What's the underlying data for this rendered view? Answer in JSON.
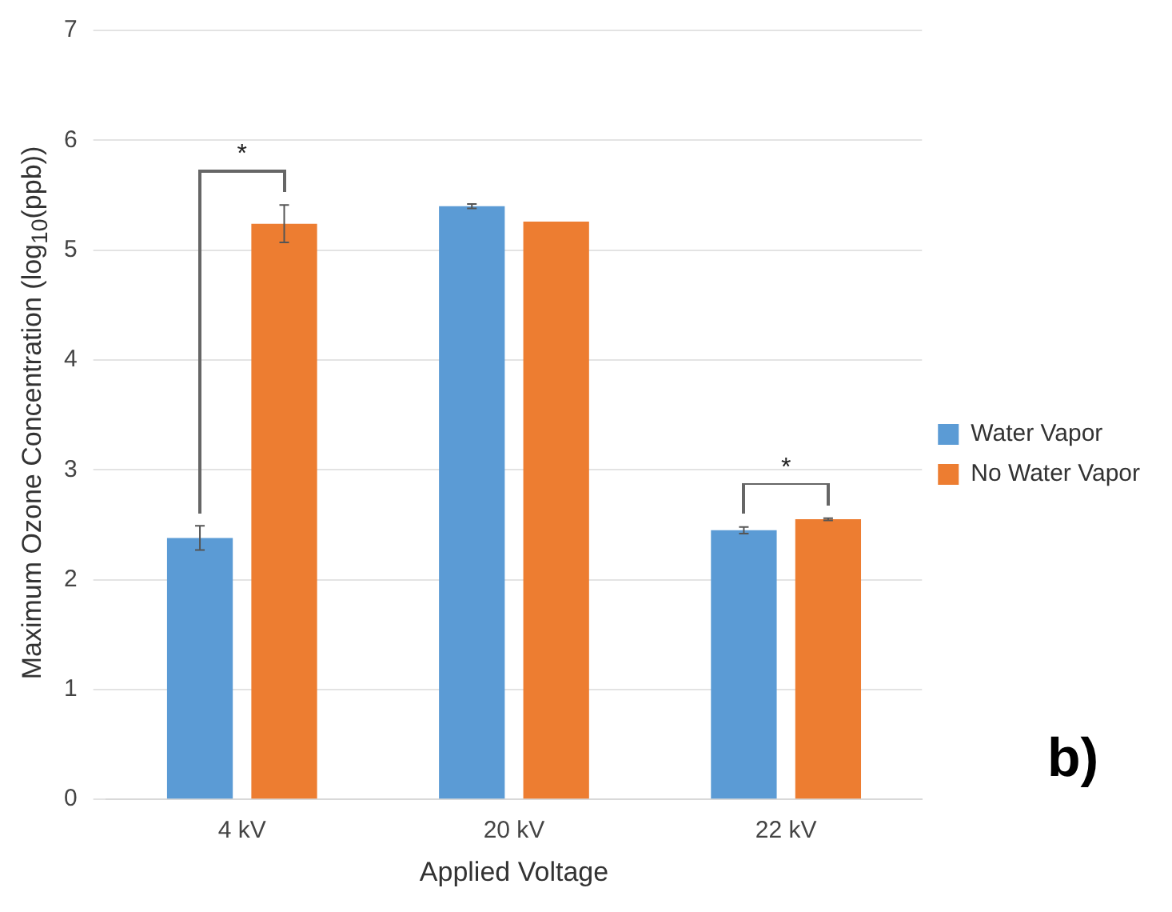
{
  "chart_data": {
    "type": "bar",
    "xlabel": "Applied Voltage",
    "ylabel": "Maximum Ozone Concentration (log$_{10}$(ppb))",
    "categories": [
      "4 kV",
      "20 kV",
      "22 kV"
    ],
    "series": [
      {
        "name": "Water Vapor",
        "color": "#5b9bd5",
        "values": [
          2.38,
          5.4,
          2.45
        ],
        "errors": [
          0.11,
          0.02,
          0.03
        ]
      },
      {
        "name": "No Water Vapor",
        "color": "#ed7d31",
        "values": [
          5.24,
          5.26,
          2.55
        ],
        "errors": [
          0.17,
          null,
          0.01
        ]
      }
    ],
    "ylim": [
      0,
      7
    ],
    "yticks": [
      0,
      1,
      2,
      3,
      4,
      5,
      6,
      7
    ],
    "grid": "y",
    "legend": "right",
    "annotations": [
      "*",
      "*",
      "b)"
    ]
  }
}
